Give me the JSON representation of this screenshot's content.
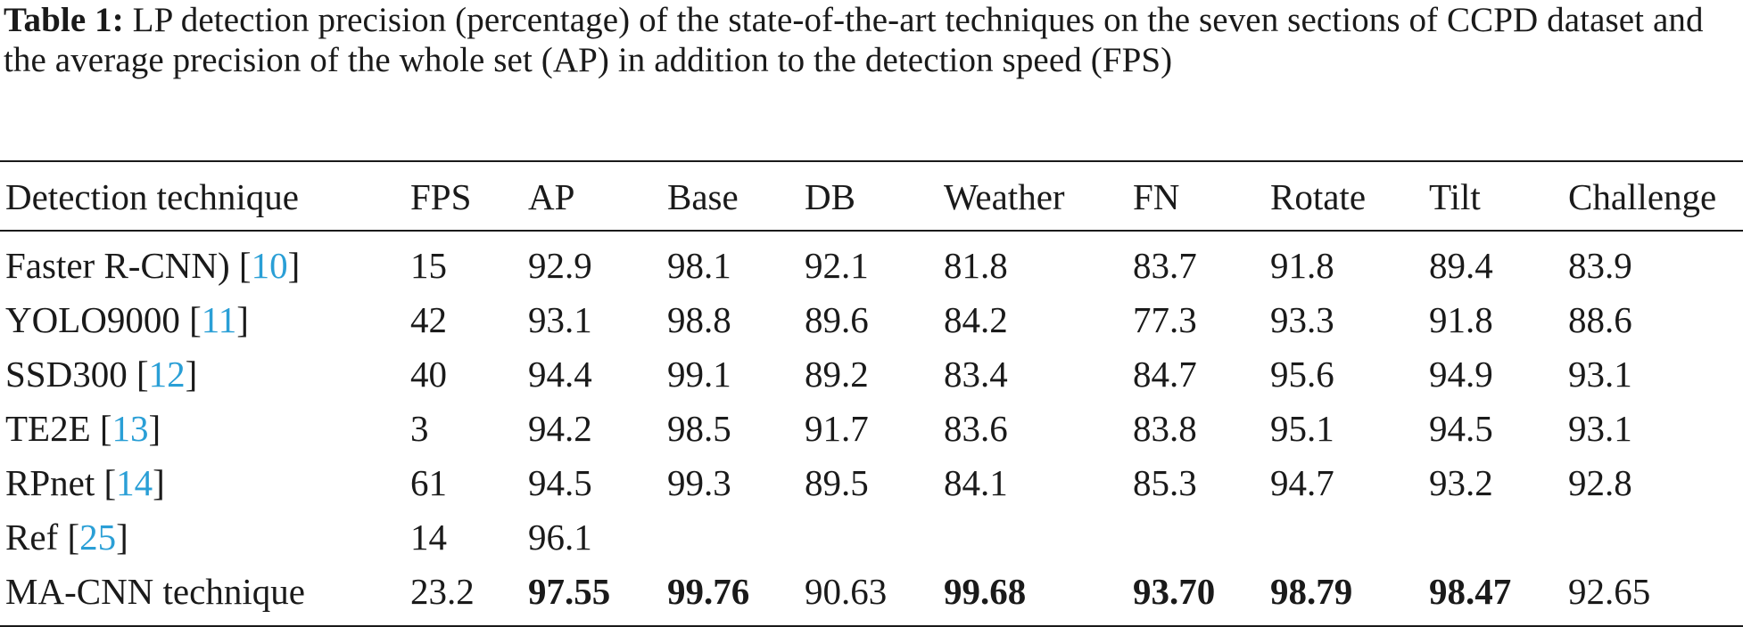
{
  "caption": {
    "label": "Table 1:",
    "text": " LP detection precision (percentage) of the state-of-the-art techniques on the seven sections of CCPD dataset and the average precision of the whole set (AP) in addition to the detection speed (FPS)"
  },
  "table": {
    "headers": [
      "Detection technique",
      "FPS",
      "AP",
      "Base",
      "DB",
      "Weather",
      "FN",
      "Rotate",
      "Tilt",
      "Challenge"
    ],
    "rows": [
      {
        "name": "Faster R-CNN) [",
        "ref": "10",
        "close": "]",
        "values": [
          "15",
          "92.9",
          "98.1",
          "92.1",
          "81.8",
          "83.7",
          "91.8",
          "89.4",
          "83.9"
        ]
      },
      {
        "name": "YOLO9000 [",
        "ref": "11",
        "close": "]",
        "values": [
          "42",
          "93.1",
          "98.8",
          "89.6",
          "84.2",
          "77.3",
          "93.3",
          "91.8",
          "88.6"
        ]
      },
      {
        "name": "SSD300 [",
        "ref": "12",
        "close": "]",
        "values": [
          "40",
          "94.4",
          "99.1",
          "89.2",
          "83.4",
          "84.7",
          "95.6",
          "94.9",
          "93.1"
        ]
      },
      {
        "name": "TE2E [",
        "ref": "13",
        "close": "]",
        "values": [
          "3",
          "94.2",
          "98.5",
          "91.7",
          "83.6",
          "83.8",
          "95.1",
          "94.5",
          "93.1"
        ]
      },
      {
        "name": "RPnet [",
        "ref": "14",
        "close": "]",
        "values": [
          "61",
          "94.5",
          "99.3",
          "89.5",
          "84.1",
          "85.3",
          "94.7",
          "93.2",
          "92.8"
        ]
      },
      {
        "name": "Ref [",
        "ref": "25",
        "close": "]",
        "values": [
          "14",
          "96.1",
          "",
          "",
          "",
          "",
          "",
          "",
          ""
        ]
      },
      {
        "name": "MA-CNN technique",
        "ref": "",
        "close": "",
        "values": [
          "23.2",
          "97.55",
          "99.76",
          "90.63",
          "99.68",
          "93.70",
          "98.79",
          "98.47",
          "92.65"
        ]
      }
    ],
    "bold_cells": [
      [
        6,
        1
      ],
      [
        6,
        2
      ],
      [
        6,
        4
      ],
      [
        6,
        5
      ],
      [
        6,
        6
      ],
      [
        6,
        7
      ]
    ],
    "ref_color": "#2a9fd6"
  }
}
